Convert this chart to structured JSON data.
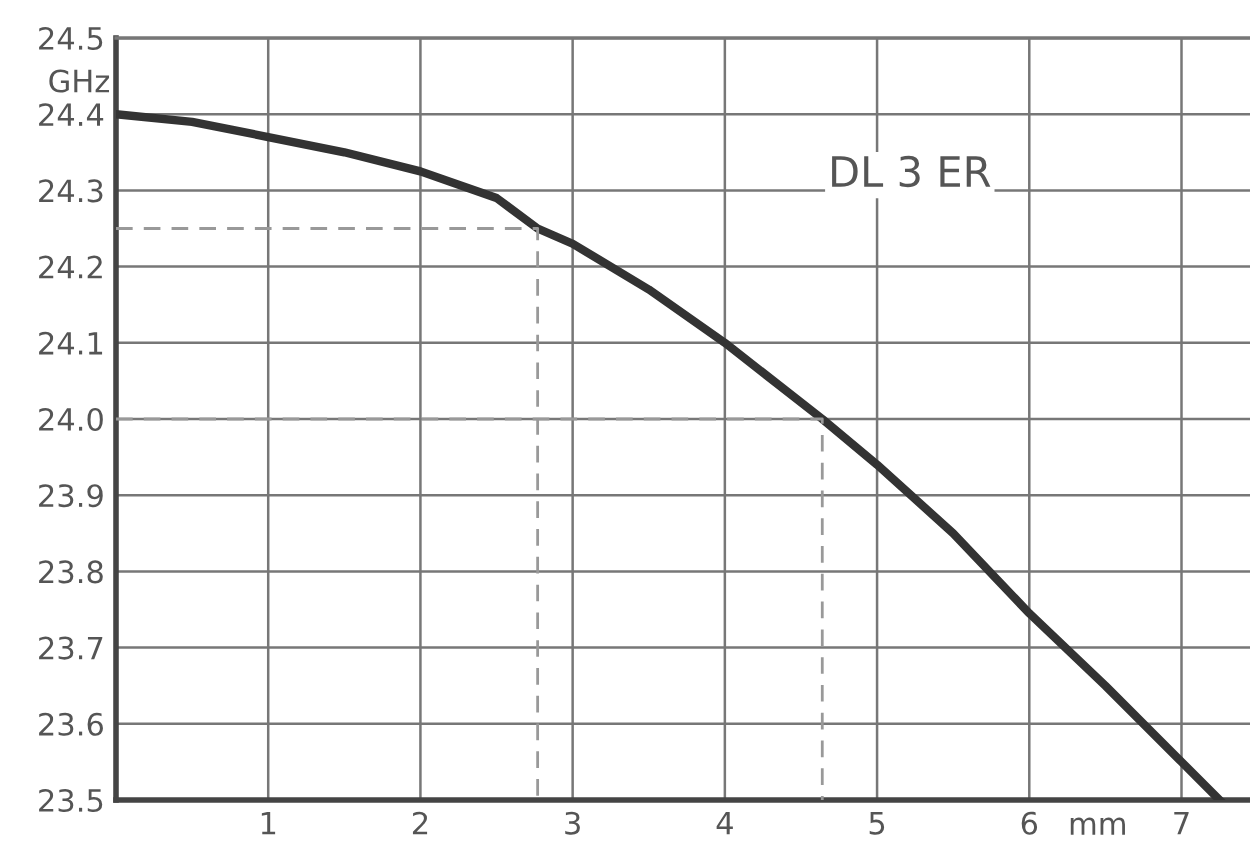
{
  "chart_data": {
    "type": "line",
    "xlabel": "mm",
    "ylabel": "GHz",
    "annotations": [
      "DL 3 ER"
    ],
    "series": [
      {
        "color": "#333333",
        "line_style": "solid",
        "x": [
          0,
          0.5,
          1,
          1.5,
          2,
          2.5,
          2.77,
          3,
          3.5,
          4,
          4.64,
          5,
          5.5,
          6,
          6.5,
          7,
          7.25
        ],
        "values": [
          24.4,
          24.39,
          24.37,
          24.35,
          24.325,
          24.29,
          24.25,
          24.23,
          24.17,
          24.1,
          24.0,
          23.94,
          23.85,
          23.745,
          23.65,
          23.55,
          23.5
        ]
      },
      {
        "color": "#999999",
        "line_style": "dashed",
        "x": [
          0,
          2.77,
          2.77
        ],
        "values": [
          24.25,
          24.25,
          23.5
        ]
      },
      {
        "color": "#999999",
        "line_style": "dashed",
        "x": [
          0,
          4.64,
          4.64
        ],
        "values": [
          24.0,
          24.0,
          23.5
        ]
      }
    ],
    "xlim": [
      0,
      7.45
    ],
    "ylim": [
      23.5,
      24.5
    ],
    "xticks": [
      1,
      2,
      3,
      4,
      5,
      6,
      7
    ],
    "yticks": [
      23.5,
      {
        "value": 23.6,
        "label": "23.6"
      },
      {
        "value": 23.7,
        "label": "23.7"
      },
      {
        "value": 23.8,
        "label": "23.8"
      },
      {
        "value": 23.9,
        "label": "23.9"
      },
      {
        "value": 24.0,
        "label": "24.0"
      },
      {
        "value": 24.1,
        "label": "24.1"
      },
      {
        "value": 24.2,
        "label": "24.2"
      },
      {
        "value": 24.3,
        "label": "24.3"
      },
      {
        "value": 24.4,
        "label": "24.4"
      },
      24.5
    ],
    "grid": true,
    "legend": false
  }
}
